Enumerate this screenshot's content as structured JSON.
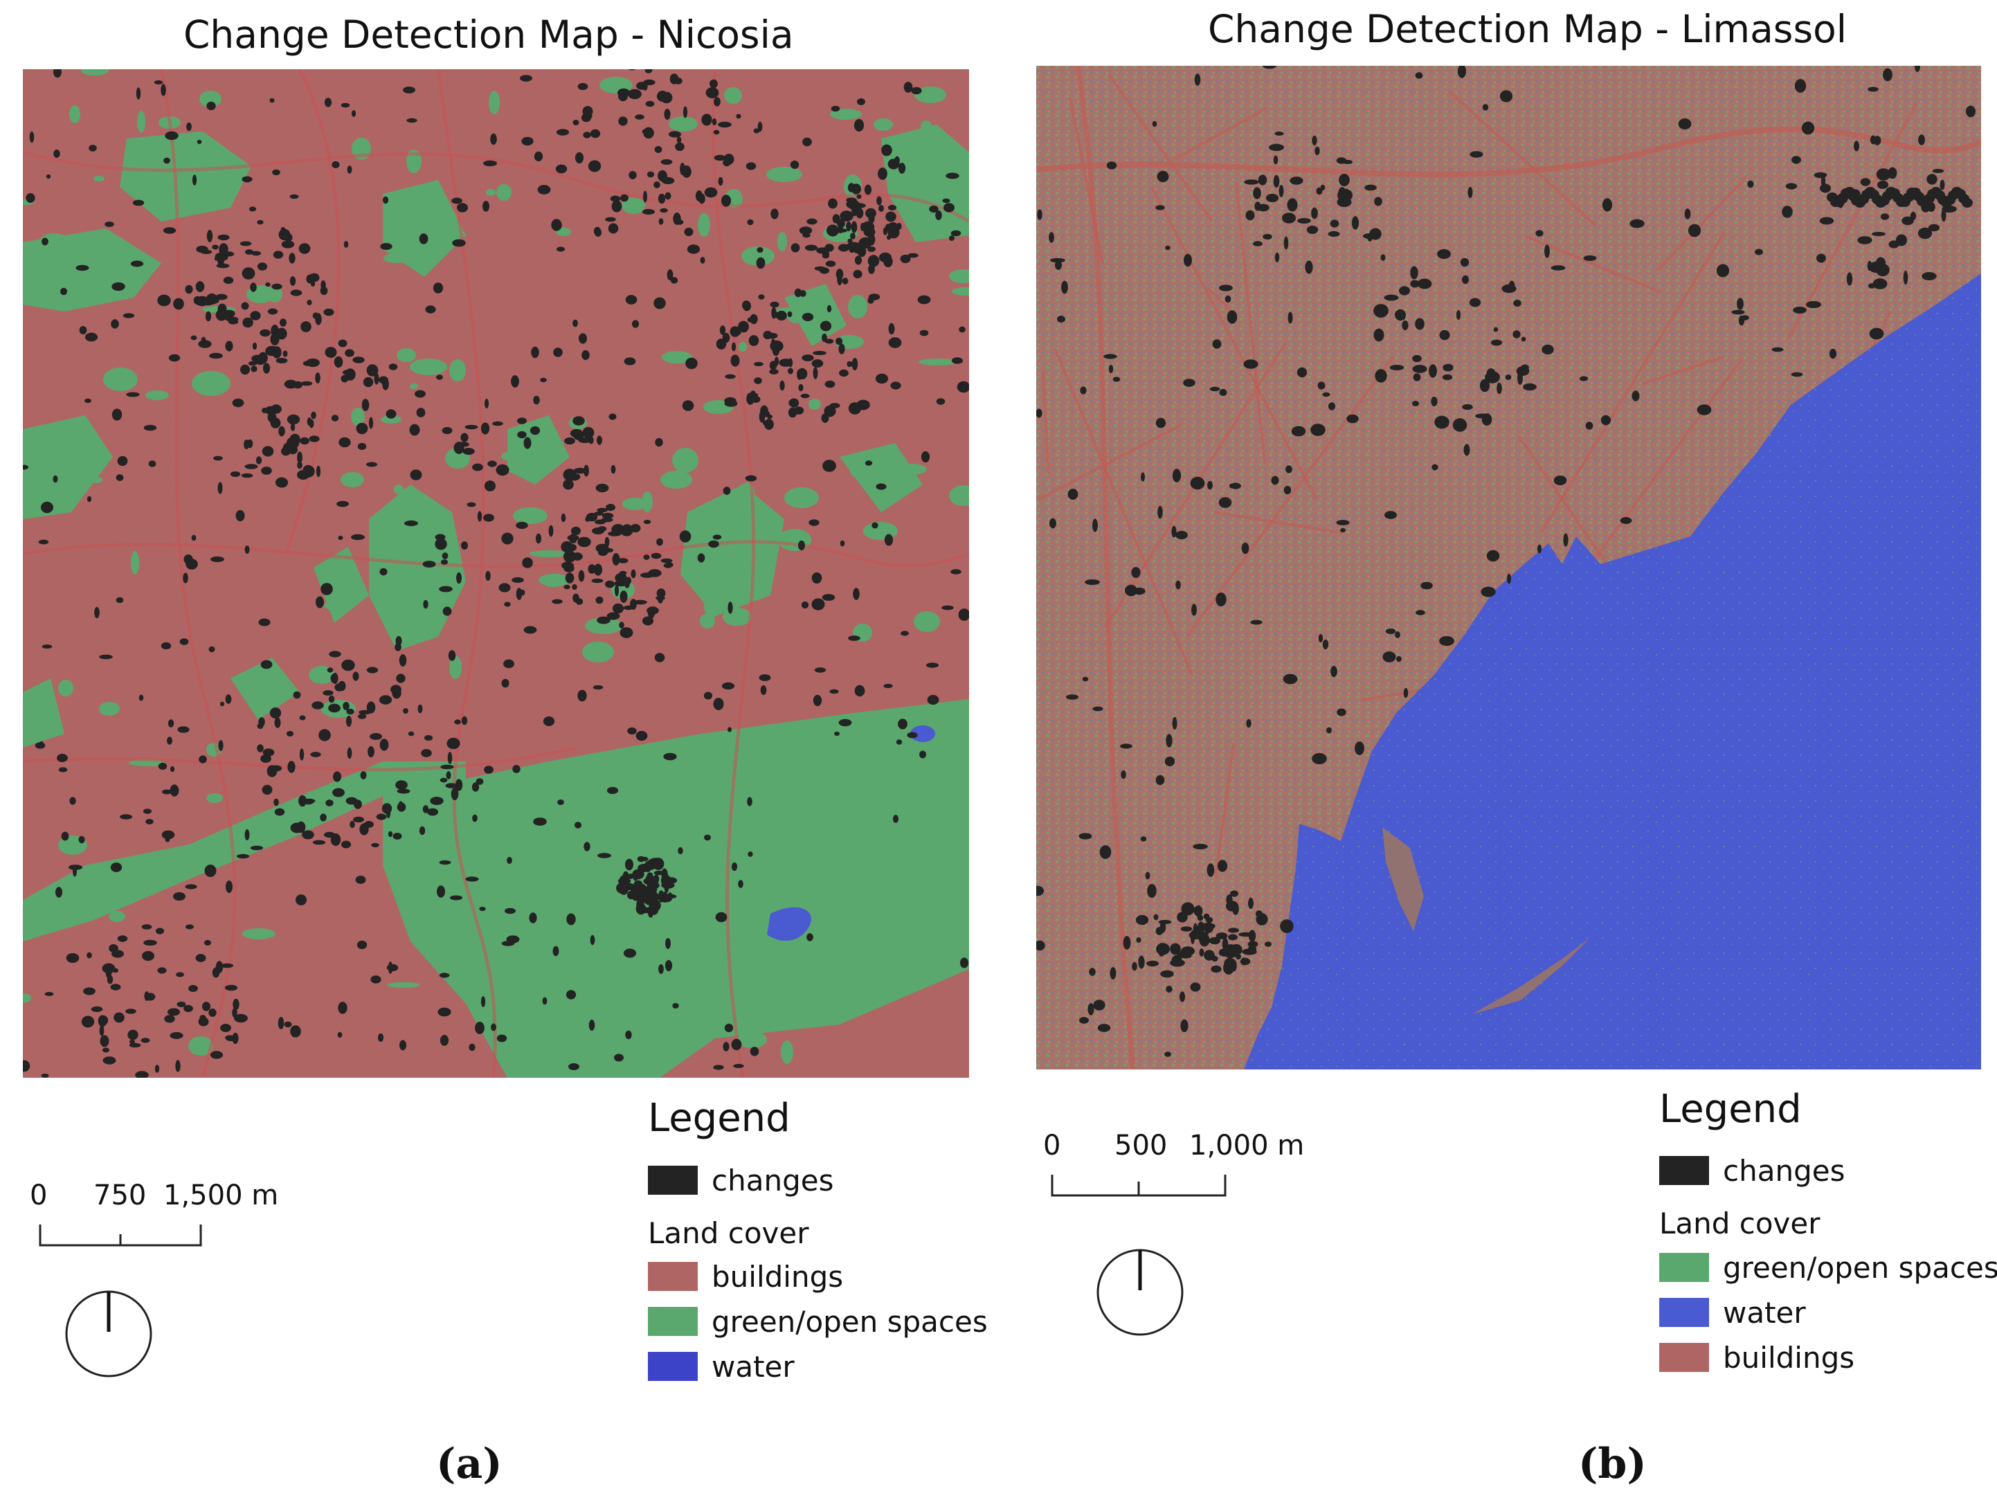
{
  "panels": {
    "a": {
      "title": "Change Detection Map - Nicosia",
      "legend_title": "Legend",
      "legend_changes": "changes",
      "legend_landcover_label": "Land cover",
      "legend_items": [
        "buildings",
        "green/open spaces",
        "water"
      ],
      "scale_labels": [
        "0",
        "750",
        "1,500 m"
      ],
      "caption": "(a)"
    },
    "b": {
      "title": "Change Detection Map - Limassol",
      "legend_title": "Legend",
      "legend_changes": "changes",
      "legend_landcover_label": "Land cover",
      "legend_items": [
        "green/open spaces",
        "water",
        "buildings"
      ],
      "scale_labels": [
        "0",
        "500",
        "1,000 m"
      ],
      "caption": "(b)"
    }
  },
  "colors": {
    "changes": "#232323",
    "buildings": "#b06565",
    "green_open_spaces": "#5aa86e",
    "water": "#4a5ad0"
  },
  "icons": [
    "north-arrow-icon"
  ]
}
